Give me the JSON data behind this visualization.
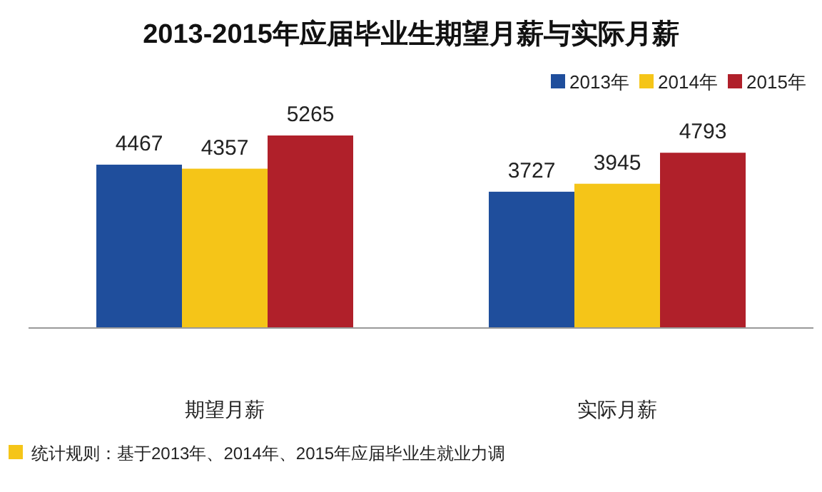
{
  "chart_data": {
    "type": "bar",
    "title": "2013-2015年应届毕业生期望月薪与实际月薪",
    "categories": [
      "期望月薪",
      "实际月薪"
    ],
    "series": [
      {
        "name": "2013年",
        "color": "#1f4e9c",
        "values": [
          4467,
          3727
        ]
      },
      {
        "name": "2014年",
        "color": "#f5c518",
        "values": [
          4357,
          3945
        ]
      },
      {
        "name": "2015年",
        "color": "#b0202a",
        "values": [
          5265,
          4793
        ]
      }
    ],
    "data_labels": true,
    "legend": "top right",
    "grid": false,
    "annotations": [
      "统计规则：基于2013年、2014年、2015年应届毕业生就业力调"
    ]
  }
}
